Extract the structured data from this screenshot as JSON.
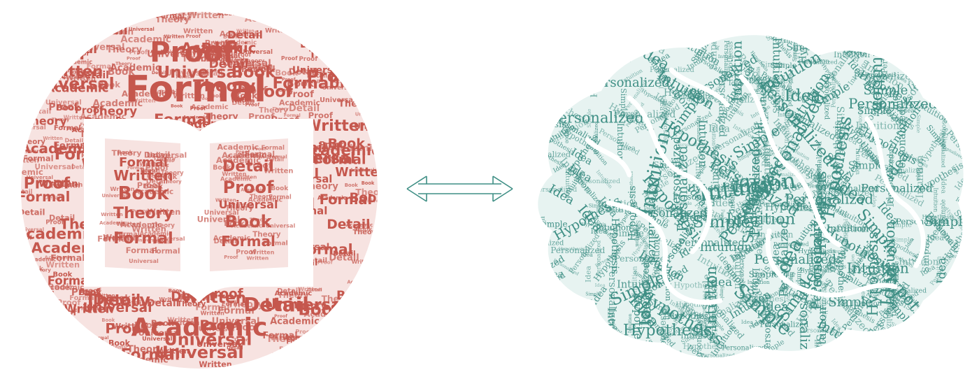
{
  "left_cloud": {
    "color": "#c5574d",
    "background": "#f7e3e1",
    "icon": "open-book-icon",
    "words": [
      "Formal",
      "Proof",
      "Academic",
      "Detail",
      "Universal",
      "Book",
      "Theory",
      "Written"
    ]
  },
  "right_cloud": {
    "color": "#3f8f85",
    "background": "#e7f3f1",
    "icon": "brain-icon",
    "words": [
      "Intuition",
      "Idea",
      "Simple",
      "Personalized",
      "Hypothesis"
    ]
  },
  "connector": {
    "icon": "double-arrow-icon",
    "color": "#3f8f85"
  }
}
